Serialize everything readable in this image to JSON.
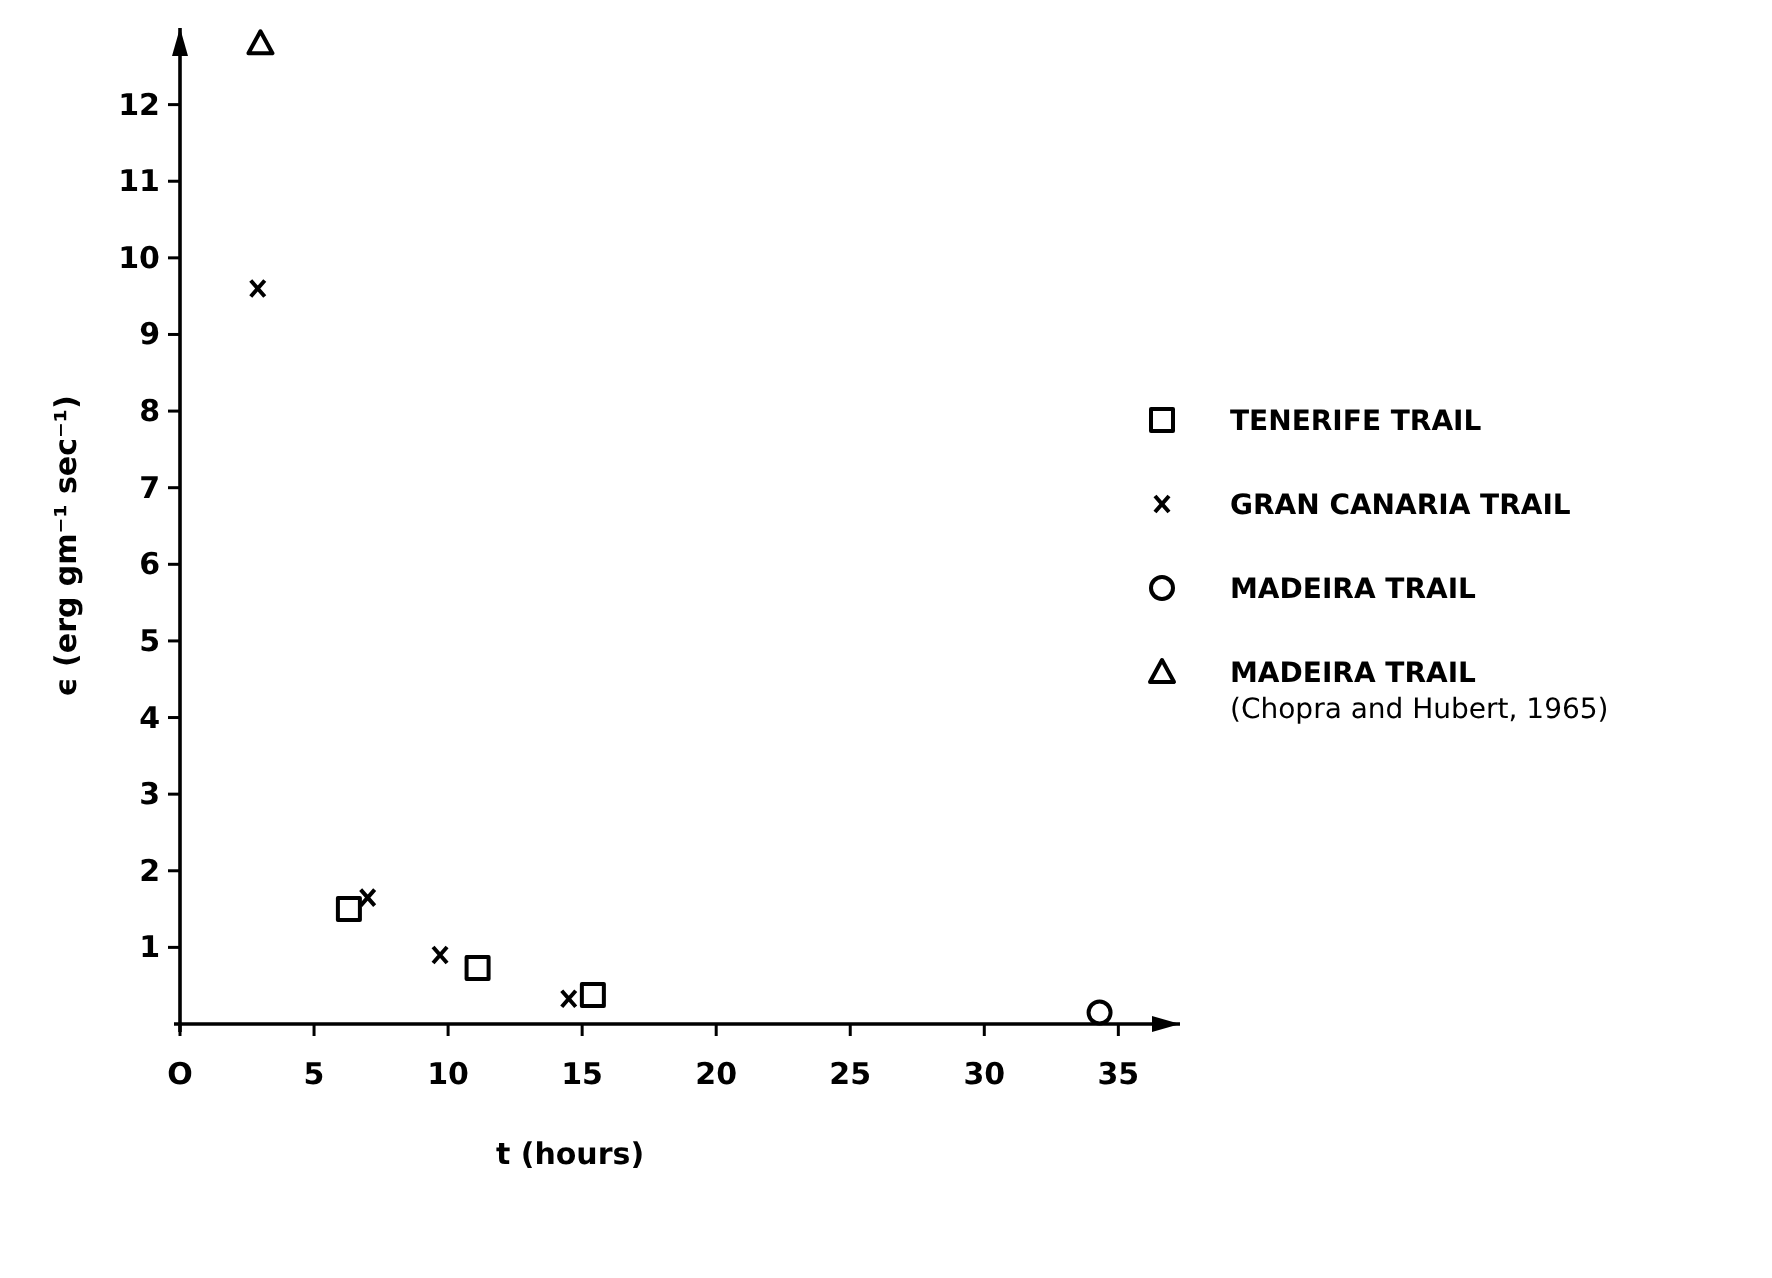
{
  "chart_data": {
    "type": "scatter",
    "xlabel": "t (hours)",
    "ylabel": "ϵ (erg gm⁻¹ sec⁻¹)",
    "xlim": [
      0,
      37.3
    ],
    "ylim": [
      0,
      13
    ],
    "xticks": [
      {
        "value": 0,
        "label": "O"
      },
      5,
      10,
      15,
      20,
      25,
      30,
      35
    ],
    "yticks": [
      1,
      2,
      3,
      4,
      5,
      6,
      7,
      8,
      9,
      10,
      11,
      12
    ],
    "grid": false,
    "legend": "right",
    "series": [
      {
        "name": "TENERIFE TRAIL",
        "color": "#000000",
        "marker": "square",
        "x": [
          6.3,
          11.1,
          15.4
        ],
        "values": [
          1.5,
          0.73,
          0.38
        ]
      },
      {
        "name": "GRAN CANARIA TRAIL",
        "color": "#000000",
        "marker": "cross",
        "x": [
          2.9,
          7.0,
          9.7,
          14.5
        ],
        "values": [
          9.6,
          1.65,
          0.9,
          0.33
        ]
      },
      {
        "name": "MADEIRA TRAIL",
        "color": "#000000",
        "marker": "circle",
        "x": [
          34.3
        ],
        "values": [
          0.15
        ]
      },
      {
        "name": "MADEIRA TRAIL\n(Chopra and Hubert, 1965)",
        "color": "#000000",
        "marker": "triangle",
        "x": [
          3.0
        ],
        "values": [
          12.8
        ]
      }
    ]
  }
}
